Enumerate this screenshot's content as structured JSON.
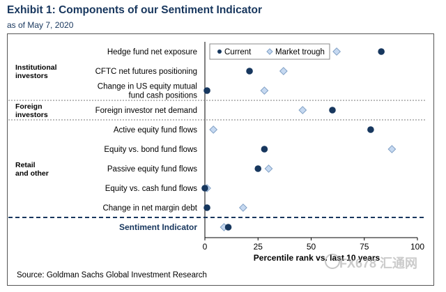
{
  "header": {
    "title": "Exhibit 1: Components of our Sentiment Indicator",
    "subtitle": "as of May 7, 2020"
  },
  "source": "Source: Goldman Sachs Global Investment Research",
  "watermark": "FX678 汇通网",
  "colors": {
    "current": "#17375e",
    "trough_fill": "#c6d9f1",
    "trough_stroke": "#7f9fc4",
    "indicator_label": "#17365d"
  },
  "chart_data": {
    "type": "scatter",
    "title": "Exhibit 1: Components of our Sentiment Indicator",
    "subtitle": "as of May 7, 2020",
    "xlabel": "Percentile rank vs. last 10 years",
    "ylabel": "",
    "xlim": [
      0,
      100
    ],
    "xticks": [
      0,
      25,
      50,
      75,
      100
    ],
    "grid": false,
    "legend": [
      "Current",
      "Market trough"
    ],
    "legend_position": "top-right",
    "categories": [
      "Hedge fund net exposure",
      "CFTC net futures positioning",
      "Change in US equity mutual fund cash positions",
      "Foreign investor net demand",
      "Active equity fund flows",
      "Equity vs. bond fund flows",
      "Passive equity fund flows",
      "Equity vs. cash fund flows",
      "Change in net margin debt",
      "Sentiment Indicator"
    ],
    "category_lines": [
      [
        "Hedge fund net exposure"
      ],
      [
        "CFTC net futures positioning"
      ],
      [
        "Change in US equity mutual",
        "fund cash positions"
      ],
      [
        "Foreign investor net demand"
      ],
      [
        "Active equity fund flows"
      ],
      [
        "Equity vs. bond fund flows"
      ],
      [
        "Passive equity fund flows"
      ],
      [
        "Equity vs. cash fund flows"
      ],
      [
        "Change in net margin debt"
      ],
      [
        "Sentiment Indicator"
      ]
    ],
    "groups": [
      {
        "label": "Institutional investors",
        "lines": [
          "Institutional",
          "investors"
        ],
        "rows": [
          0,
          2
        ]
      },
      {
        "label": "Foreign investors",
        "lines": [
          "Foreign",
          "investors"
        ],
        "rows": [
          3,
          3
        ]
      },
      {
        "label": "Retail and other",
        "lines": [
          "Retail",
          "and other"
        ],
        "rows": [
          4,
          8
        ]
      }
    ],
    "series": [
      {
        "name": "Current",
        "values": [
          83,
          21,
          1,
          60,
          78,
          28,
          25,
          0,
          1,
          11
        ]
      },
      {
        "name": "Market trough",
        "values": [
          62,
          37,
          28,
          46,
          4,
          88,
          30,
          1,
          18,
          9
        ]
      }
    ]
  }
}
